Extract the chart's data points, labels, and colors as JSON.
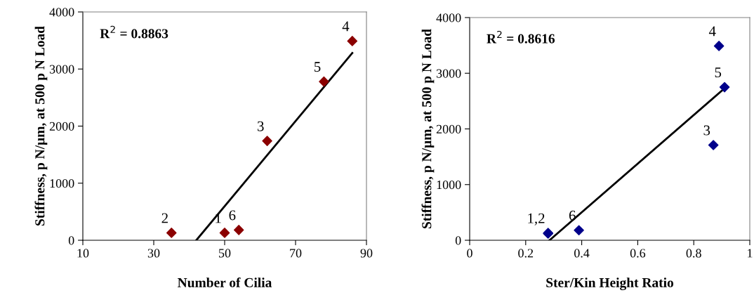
{
  "chart_data": [
    {
      "type": "scatter",
      "xlabel": "Number of Cilia",
      "ylabel": "Stiffness, p N/µm, at 500 p N Load",
      "xlim": [
        10,
        90
      ],
      "xticks": [
        10,
        30,
        50,
        70,
        90
      ],
      "ylim": [
        0,
        4000
      ],
      "yticks": [
        0,
        1000,
        2000,
        3000,
        4000
      ],
      "marker": "diamond",
      "grid": false,
      "legend": false,
      "series": [
        {
          "color": "#8b0000",
          "x": [
            50,
            35,
            62,
            86,
            78,
            54
          ],
          "values": [
            130,
            130,
            1740,
            3490,
            2780,
            180
          ]
        },
        {
          "type": "line",
          "color": "#000000",
          "marker": "none",
          "x": [
            42,
            86
          ],
          "values": [
            0,
            3280
          ]
        }
      ],
      "annotations": [
        "R$^{2}$ = 0.8863",
        {
          "text": "1",
          "x": 50,
          "y": 130
        },
        {
          "text": "2",
          "x": 35,
          "y": 130
        },
        {
          "text": "3",
          "x": 62,
          "y": 1740
        },
        {
          "text": "4",
          "x": 86,
          "y": 3490
        },
        {
          "text": "5",
          "x": 78,
          "y": 2780
        },
        {
          "text": "6",
          "x": 54,
          "y": 180
        }
      ]
    },
    {
      "type": "scatter",
      "xlabel": "Ster/Kin Height Ratio",
      "ylabel": "Stiffness, p N/µm, at 500 p N Load",
      "xlim": [
        0,
        1
      ],
      "xticks": [
        0,
        0.2,
        0.4,
        0.6,
        0.8,
        1
      ],
      "ylim": [
        0,
        4000
      ],
      "yticks": [
        0,
        1000,
        2000,
        3000,
        4000
      ],
      "marker": "diamond",
      "grid": false,
      "legend": false,
      "series": [
        {
          "color": "#00008b",
          "x": [
            0.28,
            0.28,
            0.87,
            0.89,
            0.91,
            0.39
          ],
          "values": [
            130,
            120,
            1710,
            3490,
            2750,
            180
          ]
        },
        {
          "type": "line",
          "color": "#000000",
          "marker": "none",
          "x": [
            0.285,
            0.91
          ],
          "values": [
            0,
            2730
          ]
        }
      ],
      "annotations": [
        "R$^{2}$ = 0.8616",
        {
          "text": "1,2",
          "x": 0.28,
          "y": 130
        },
        {
          "text": "3",
          "x": 0.87,
          "y": 1710
        },
        {
          "text": "4",
          "x": 0.89,
          "y": 3490
        },
        {
          "text": "5",
          "x": 0.91,
          "y": 2750
        },
        {
          "text": "6",
          "x": 0.39,
          "y": 180
        }
      ]
    }
  ]
}
